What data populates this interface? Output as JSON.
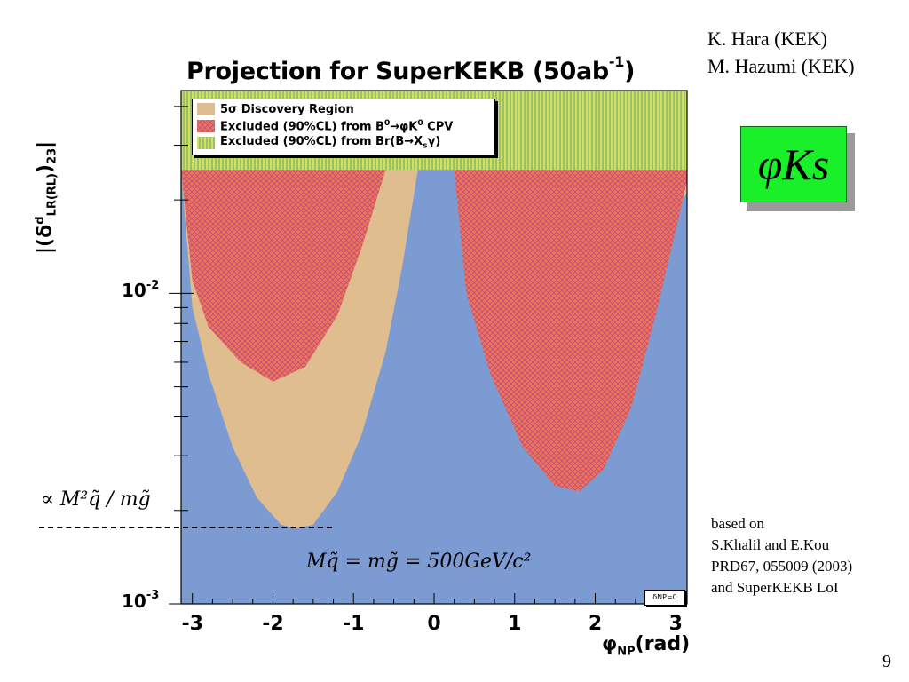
{
  "authors": [
    "K. Hara (KEK)",
    "M. Hazumi (KEK)"
  ],
  "badge": "φKs",
  "page_number": "9",
  "based_on": [
    "based on",
    "S.Khalil and E.Kou",
    "PRD67, 055009 (2003)",
    "and SuperKEKB LoI"
  ],
  "annotations": {
    "proportional": "∝ M²q̃ / mg̃",
    "mass_relation": "Mq̃ = mg̃ = 500GeV/c²",
    "delta_box": "δNP=0"
  },
  "colors": {
    "background_region": "#7c9bd2",
    "discovery": "#dfbd8e",
    "excluded_cpv": "#ff7040",
    "excluded_br": "#b8d46a"
  },
  "chart_data": {
    "type": "area",
    "title_main": "Projection for SuperKEKB (50ab",
    "title_sup": "-1",
    "title_end": ")",
    "xlabel": "φ",
    "xlabel_sub": "NP",
    "xlabel_unit": "(rad)",
    "ylabel": "|(δ",
    "ylabel_sup": "d",
    "ylabel_sub": "LR(RL)",
    "ylabel_end": ")",
    "ylabel_sub2": "23",
    "ylabel_bar": "|",
    "xlim": [
      -3.14,
      3.14
    ],
    "ylim": [
      0.001,
      0.045
    ],
    "yscale": "log",
    "xticks": [
      "-3",
      "-2",
      "-1",
      "0",
      "1",
      "2",
      "3"
    ],
    "xtick_values": [
      -3,
      -2,
      -1,
      0,
      1,
      2,
      3
    ],
    "yticks": [
      {
        "value": 0.01,
        "base": "10",
        "exp": "-2"
      },
      {
        "value": 0.001,
        "base": "10",
        "exp": "-3"
      }
    ],
    "legend": {
      "position": "top-left",
      "entries": [
        {
          "pre": "5",
          "sigma": "σ",
          "post": " Discovery Region"
        },
        {
          "pre": "Excluded (90%CL) from B",
          "sup1": "0",
          "arrow": "→",
          "mid": "φK",
          "sup2": "0",
          "post": " CPV"
        },
        {
          "pre": "Excluded (90%CL) from Br(B",
          "arrow": "→",
          "mid": "X",
          "sub": "s",
          "post": "γ)"
        }
      ]
    },
    "series": [
      {
        "name": "5σ Discovery Region",
        "region": "left lobe",
        "boundary": [
          [
            -3.14,
            0.025
          ],
          [
            -3.0,
            0.009
          ],
          [
            -2.8,
            0.0055
          ],
          [
            -2.5,
            0.0032
          ],
          [
            -2.2,
            0.0022
          ],
          [
            -1.9,
            0.0018
          ],
          [
            -1.7,
            0.00175
          ],
          [
            -1.5,
            0.0018
          ],
          [
            -1.2,
            0.0023
          ],
          [
            -0.9,
            0.0035
          ],
          [
            -0.6,
            0.0065
          ],
          [
            -0.4,
            0.012
          ],
          [
            -0.2,
            0.025
          ]
        ]
      },
      {
        "name": "5σ Discovery Region",
        "region": "right lobe",
        "boundary": [
          [
            2.2,
            0.022
          ],
          [
            2.45,
            0.016
          ],
          [
            2.75,
            0.0155
          ],
          [
            3.14,
            0.021
          ]
        ]
      },
      {
        "name": "Excluded (90%CL) from B0→φK0 CPV",
        "region": "left lobe",
        "boundary": [
          [
            -3.14,
            0.025
          ],
          [
            -3.0,
            0.011
          ],
          [
            -2.8,
            0.0078
          ],
          [
            -2.4,
            0.006
          ],
          [
            -2.0,
            0.0052
          ],
          [
            -1.6,
            0.0058
          ],
          [
            -1.2,
            0.0085
          ],
          [
            -0.9,
            0.014
          ],
          [
            -0.6,
            0.025
          ]
        ]
      },
      {
        "name": "Excluded (90%CL) from B0→φK0 CPV",
        "region": "right lobe",
        "boundary": [
          [
            0.25,
            0.025
          ],
          [
            0.4,
            0.01
          ],
          [
            0.7,
            0.0055
          ],
          [
            1.1,
            0.0032
          ],
          [
            1.5,
            0.0024
          ],
          [
            1.8,
            0.0023
          ],
          [
            2.1,
            0.0027
          ],
          [
            2.45,
            0.0043
          ],
          [
            2.75,
            0.0085
          ],
          [
            3.0,
            0.016
          ],
          [
            3.14,
            0.023
          ]
        ]
      },
      {
        "name": "Excluded (90%CL) from Br(B→Xsγ)",
        "region": "band",
        "y_lower": 0.025,
        "x": [
          -3.14,
          3.14
        ]
      }
    ]
  }
}
